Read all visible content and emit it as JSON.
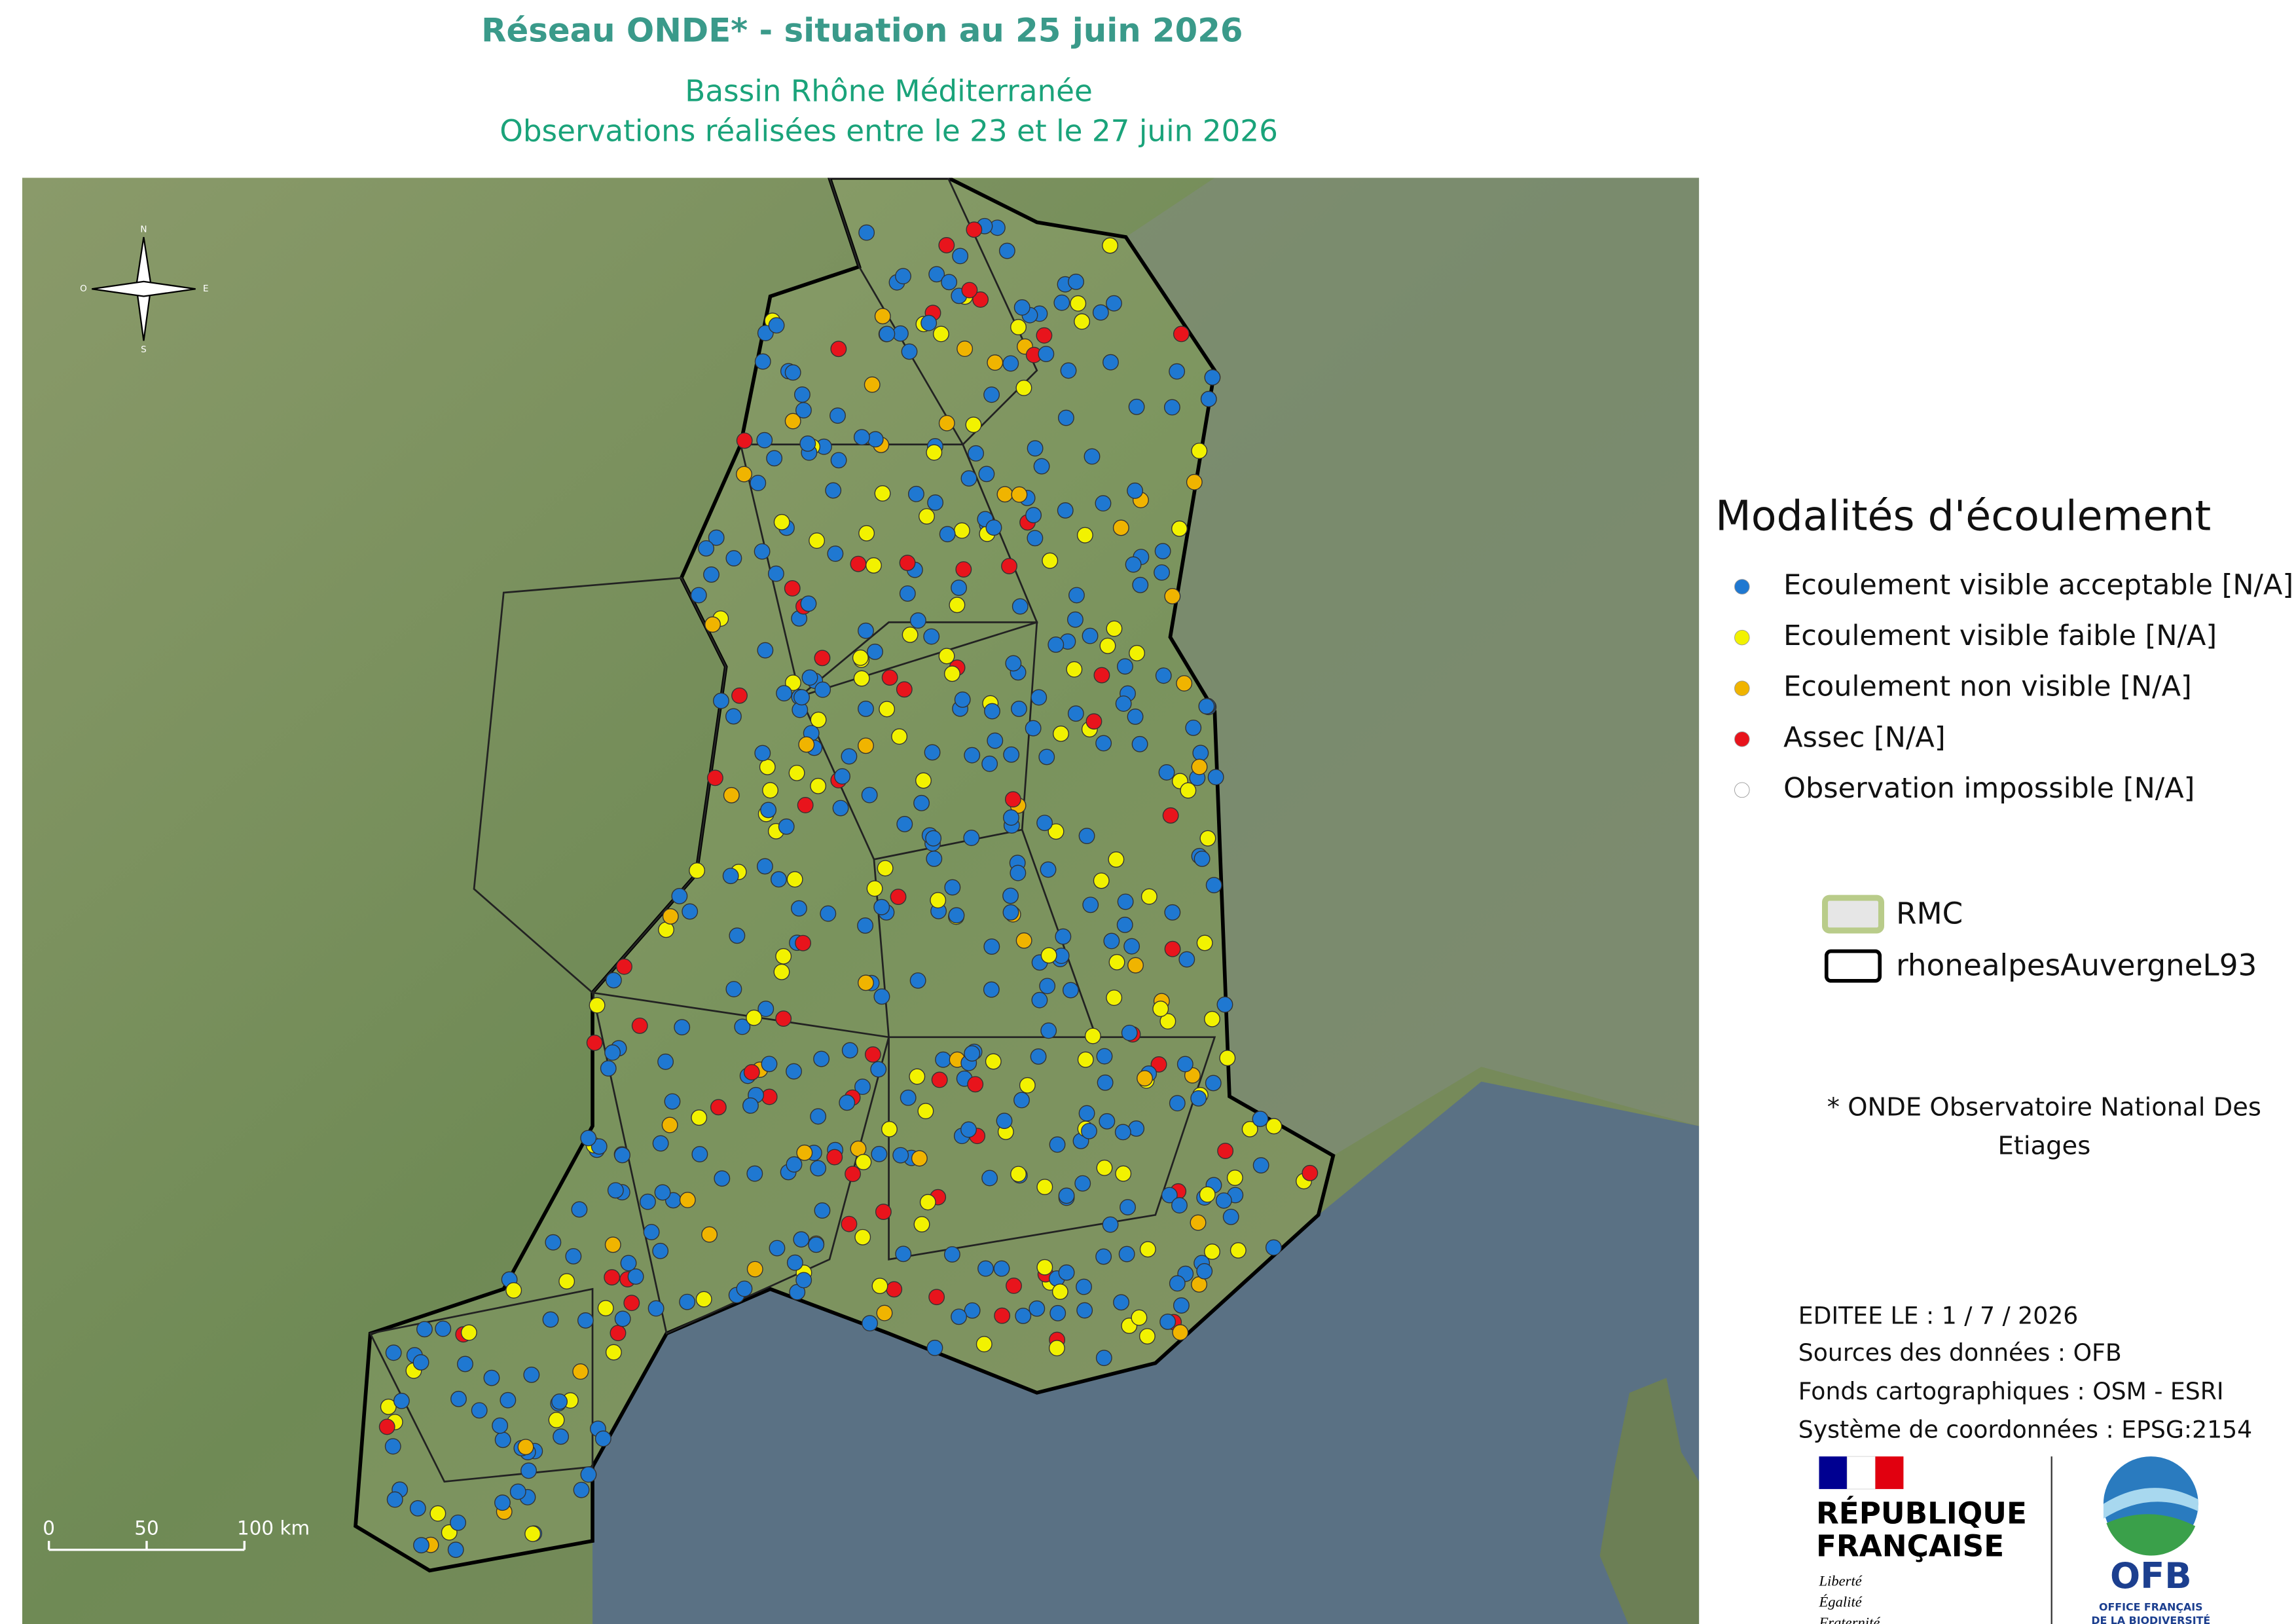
{
  "header": {
    "title": "Réseau ONDE* - situation au 25 juin 2026",
    "subtitle_1": "Bassin Rhône Méditerranée",
    "subtitle_2": "Observations réalisées entre le 23 et le 27 juin 2026"
  },
  "compass": {
    "north": "N",
    "south": "S",
    "east": "E",
    "west": "O"
  },
  "scale_bar": {
    "labels": [
      "0",
      "50",
      "100 km"
    ]
  },
  "legend": {
    "title": "Modalités d'écoulement",
    "items": [
      {
        "label": "Ecoulement visible acceptable [N/A]",
        "color": "#1f78d1"
      },
      {
        "label": "Ecoulement visible faible [N/A]",
        "color": "#f2f200"
      },
      {
        "label": "Ecoulement non visible [N/A]",
        "color": "#f0b400"
      },
      {
        "label": "Assec [N/A]",
        "color": "#e8141c"
      },
      {
        "label": "Observation impossible [N/A]",
        "color": "#ffffff"
      }
    ],
    "layers": [
      {
        "label": "RMC"
      },
      {
        "label": "rhonealpesAuvergneL93"
      }
    ]
  },
  "footnote": "* ONDE Observatoire National Des Etiages",
  "credits": [
    "EDITEE LE : 1 / 7 / 2026",
    "Sources des données : OFB",
    "Fonds cartographiques : OSM - ESRI",
    "Système de coordonnées : EPSG:2154"
  ],
  "logos": {
    "republique": [
      "RÉPUBLIQUE",
      "FRANÇAISE"
    ],
    "motto": [
      "Liberté",
      "Égalité",
      "Fraternité"
    ],
    "ofb": "OFB",
    "ofb_sub": [
      "OFFICE FRANÇAIS",
      "DE LA BIODIVERSITÉ"
    ]
  }
}
